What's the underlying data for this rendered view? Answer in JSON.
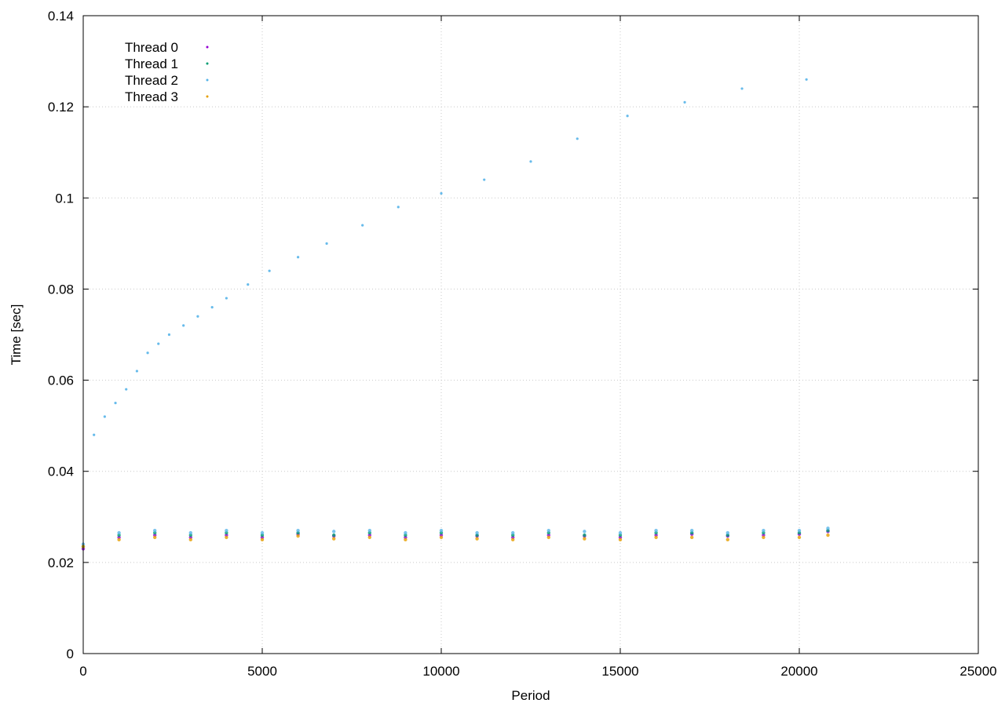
{
  "chart_data": {
    "type": "scatter",
    "title": "",
    "xlabel": "Period",
    "ylabel": "Time [sec]",
    "xlim": [
      0,
      25000
    ],
    "ylim": [
      0,
      0.14
    ],
    "x_ticks": [
      0,
      5000,
      10000,
      15000,
      20000,
      25000
    ],
    "y_ticks": [
      0,
      0.02,
      0.04,
      0.06,
      0.08,
      0.1,
      0.12,
      0.14
    ],
    "x_tick_labels": [
      "0",
      "5000",
      "10000",
      "15000",
      "20000",
      "25000"
    ],
    "y_tick_labels": [
      "0",
      "0.02",
      "0.04",
      "0.06",
      "0.08",
      "0.1",
      "0.12",
      "0.14"
    ],
    "grid": true,
    "legend_position": "top-left",
    "series": [
      {
        "name": "Thread 0",
        "color": "#9400d3",
        "x": [
          0,
          1000,
          2000,
          3000,
          4000,
          5000,
          6000,
          7000,
          8000,
          9000,
          10000,
          11000,
          12000,
          13000,
          14000,
          15000,
          16000,
          17000,
          18000,
          19000,
          20000,
          20800
        ],
        "y": [
          0.023,
          0.0255,
          0.026,
          0.0255,
          0.026,
          0.0255,
          0.0262,
          0.0258,
          0.026,
          0.0255,
          0.026,
          0.0258,
          0.0255,
          0.026,
          0.0258,
          0.0255,
          0.026,
          0.0262,
          0.0258,
          0.026,
          0.0262,
          0.0268
        ]
      },
      {
        "name": "Thread 1",
        "color": "#009e73",
        "x": [
          0,
          1000,
          2000,
          3000,
          4000,
          5000,
          6000,
          7000,
          8000,
          9000,
          10000,
          11000,
          12000,
          13000,
          14000,
          15000,
          16000,
          17000,
          18000,
          19000,
          20000,
          20800
        ],
        "y": [
          0.0235,
          0.026,
          0.0265,
          0.026,
          0.0265,
          0.026,
          0.0265,
          0.026,
          0.0265,
          0.026,
          0.0265,
          0.026,
          0.026,
          0.0265,
          0.026,
          0.026,
          0.0265,
          0.0265,
          0.026,
          0.0265,
          0.0265,
          0.027
        ]
      },
      {
        "name": "Thread 2",
        "color": "#56b4e9",
        "x": [
          0,
          1000,
          2000,
          3000,
          4000,
          5000,
          6000,
          7000,
          8000,
          9000,
          10000,
          11000,
          12000,
          13000,
          14000,
          15000,
          16000,
          17000,
          18000,
          19000,
          20000,
          20800
        ],
        "y": [
          0.024,
          0.0265,
          0.027,
          0.0265,
          0.027,
          0.0265,
          0.027,
          0.0268,
          0.027,
          0.0265,
          0.027,
          0.0265,
          0.0265,
          0.027,
          0.0268,
          0.0265,
          0.027,
          0.027,
          0.0265,
          0.027,
          0.027,
          0.0275
        ]
      },
      {
        "name": "Thread 3",
        "color": "#e69f00",
        "x": [
          0,
          1000,
          2000,
          3000,
          4000,
          5000,
          6000,
          7000,
          8000,
          9000,
          10000,
          11000,
          12000,
          13000,
          14000,
          15000,
          16000,
          17000,
          18000,
          19000,
          20000,
          20800
        ],
        "y": [
          0.0235,
          0.025,
          0.0255,
          0.025,
          0.0255,
          0.025,
          0.0258,
          0.0252,
          0.0255,
          0.025,
          0.0255,
          0.0252,
          0.025,
          0.0255,
          0.0252,
          0.025,
          0.0255,
          0.0255,
          0.025,
          0.0255,
          0.0255,
          0.026
        ]
      }
    ],
    "outliers": {
      "x": [
        300,
        600,
        900,
        1200,
        1500,
        1800,
        2100,
        2400,
        2800,
        3200,
        3600,
        4000,
        4600,
        5200,
        6000,
        6800,
        7800,
        8800,
        10000,
        11200,
        12500,
        13800,
        15200,
        16800,
        18400,
        20200
      ],
      "y": [
        0.048,
        0.052,
        0.055,
        0.058,
        0.062,
        0.066,
        0.068,
        0.07,
        0.072,
        0.074,
        0.076,
        0.078,
        0.081,
        0.084,
        0.087,
        0.09,
        0.094,
        0.098,
        0.101,
        0.104,
        0.108,
        0.113,
        0.118,
        0.121,
        0.124,
        0.126
      ]
    }
  }
}
